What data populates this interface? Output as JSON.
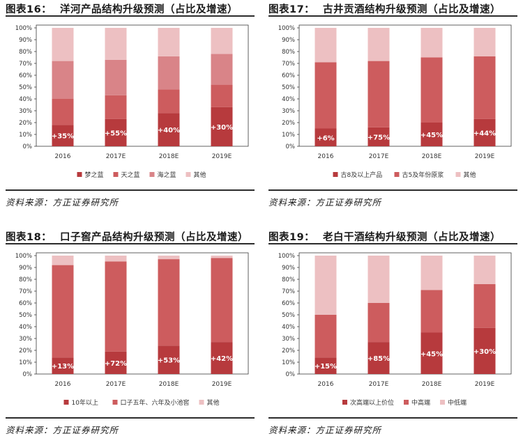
{
  "colors": {
    "seg1": "#b73a3d",
    "seg2": "#cd5c5e",
    "seg3": "#d98488",
    "seg4": "#edc0c2",
    "frame": "#3a3a3a",
    "grid": "#e6e6e6"
  },
  "panels": [
    {
      "id": "p16",
      "title_num": "图表16：",
      "title_text": "洋河产品结构升级预测（占比及增速）",
      "source": "资料来源：方正证券研究所",
      "legend": [
        "梦之蓝",
        "天之蓝",
        "海之蓝",
        "其他"
      ],
      "colors": [
        "#b73a3d",
        "#cd5c5e",
        "#d98488",
        "#edc0c2"
      ]
    },
    {
      "id": "p17",
      "title_num": "图表17：",
      "title_text": "古井贡酒结构升级预测（占比及增速）",
      "source": "资料来源：方正证券研究所",
      "legend": [
        "古8及以上产品",
        "古5及年份原浆",
        "其他"
      ],
      "colors": [
        "#b73a3d",
        "#cd5c5e",
        "#edc0c2"
      ]
    },
    {
      "id": "p18",
      "title_num": "图表18：",
      "title_text": "口子窖产品结构升级预测（占比及增速）",
      "source": "资料来源：方正证券研究所",
      "legend": [
        "10年以上",
        "口子五年、六年及小池窖",
        "其他"
      ],
      "colors": [
        "#b73a3d",
        "#cd5c5e",
        "#edc0c2"
      ]
    },
    {
      "id": "p19",
      "title_num": "图表19：",
      "title_text": "老白干酒结构升级预测（占比及增速）",
      "source": "资料来源：方正证券研究所",
      "legend": [
        "次高端以上价位",
        "中高端",
        "中低端"
      ],
      "colors": [
        "#b73a3d",
        "#cd5c5e",
        "#edc0c2"
      ]
    }
  ],
  "chart_data": [
    {
      "type": "bar",
      "stacked": true,
      "categories": [
        "2016",
        "2017E",
        "2018E",
        "2019E"
      ],
      "yticks": [
        "0%",
        "10%",
        "20%",
        "30%",
        "40%",
        "50%",
        "60%",
        "70%",
        "80%",
        "90%",
        "100%"
      ],
      "ylim": [
        0,
        100
      ],
      "series": [
        {
          "name": "梦之蓝",
          "values": [
            18,
            23,
            28,
            33
          ]
        },
        {
          "name": "天之蓝",
          "values": [
            22,
            20,
            20,
            19
          ]
        },
        {
          "name": "海之蓝",
          "values": [
            32,
            30,
            28,
            26
          ]
        },
        {
          "name": "其他",
          "values": [
            28,
            27,
            24,
            22
          ]
        }
      ],
      "annotations": [
        "+35%",
        "+55%",
        "+40%",
        "+30%"
      ],
      "legend_position": "bottom"
    },
    {
      "type": "bar",
      "stacked": true,
      "categories": [
        "2016",
        "2017E",
        "2018E",
        "2019E"
      ],
      "yticks": [
        "0%",
        "10%",
        "20%",
        "30%",
        "40%",
        "50%",
        "60%",
        "70%",
        "80%",
        "90%",
        "100%"
      ],
      "ylim": [
        0,
        100
      ],
      "series": [
        {
          "name": "古8及以上产品",
          "values": [
            15,
            16,
            20,
            23
          ]
        },
        {
          "name": "古5及年份原浆",
          "values": [
            56,
            56,
            55,
            53
          ]
        },
        {
          "name": "其他",
          "values": [
            29,
            28,
            25,
            24
          ]
        }
      ],
      "annotations": [
        "+6%",
        "+75%",
        "+45%",
        "+44%"
      ],
      "legend_position": "bottom"
    },
    {
      "type": "bar",
      "stacked": true,
      "categories": [
        "2016",
        "2017E",
        "2018E",
        "2019E"
      ],
      "yticks": [
        "0%",
        "10%",
        "20%",
        "30%",
        "40%",
        "50%",
        "60%",
        "70%",
        "80%",
        "90%",
        "100%"
      ],
      "ylim": [
        0,
        100
      ],
      "series": [
        {
          "name": "10年以上",
          "values": [
            14,
            19,
            24,
            27
          ]
        },
        {
          "name": "口子五年、六年及小池窖",
          "values": [
            78,
            76,
            73,
            71
          ]
        },
        {
          "name": "其他",
          "values": [
            8,
            5,
            3,
            2
          ]
        }
      ],
      "annotations": [
        "+13%",
        "+72%",
        "+53%",
        "+42%"
      ],
      "legend_position": "bottom"
    },
    {
      "type": "bar",
      "stacked": true,
      "categories": [
        "2016",
        "2017E",
        "2018E",
        "2019E"
      ],
      "yticks": [
        "0%",
        "10%",
        "20%",
        "30%",
        "40%",
        "50%",
        "60%",
        "70%",
        "80%",
        "90%",
        "100%"
      ],
      "ylim": [
        0,
        100
      ],
      "series": [
        {
          "name": "次高端以上价位",
          "values": [
            14,
            27,
            35,
            39
          ]
        },
        {
          "name": "中高端",
          "values": [
            36,
            33,
            36,
            37
          ]
        },
        {
          "name": "中低端",
          "values": [
            50,
            40,
            29,
            24
          ]
        }
      ],
      "annotations": [
        "+15%",
        "+85%",
        "+45%",
        "+30%"
      ],
      "legend_position": "bottom"
    }
  ]
}
